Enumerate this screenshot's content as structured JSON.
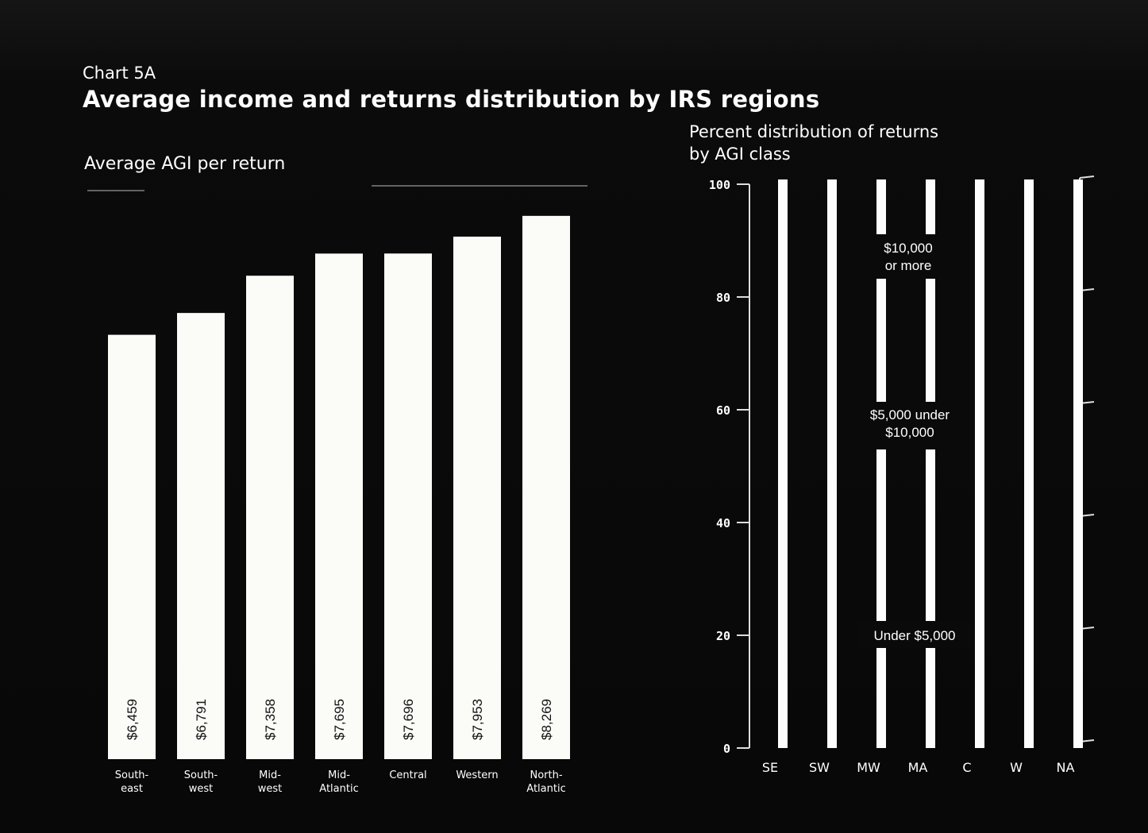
{
  "header": {
    "chart_label": "Chart 5A",
    "title": "Average income and returns distribution by IRS regions"
  },
  "colors": {
    "background": "#0a0a0a",
    "bar": "#ffffff",
    "text": "#ffffff"
  },
  "chart_data": [
    {
      "type": "bar",
      "title": "Average AGI per return",
      "categories": [
        "South-\neast",
        "South-\nwest",
        "Mid-\nwest",
        "Mid-\nAtlantic",
        "Central",
        "Western",
        "North-\nAtlantic"
      ],
      "values": [
        6459,
        6791,
        7358,
        7695,
        7696,
        7953,
        8269
      ],
      "value_labels": [
        "$6,459",
        "$6,791",
        "$7,358",
        "$7,695",
        "$7,696",
        "$7,953",
        "$8,269"
      ],
      "ylim": [
        0,
        9000
      ],
      "grid": false
    },
    {
      "type": "bar",
      "title": "Percent distribution of returns\nby AGI class",
      "categories": [
        "SE",
        "SW",
        "MW",
        "MA",
        "C",
        "W",
        "NA"
      ],
      "yticks": [
        "0",
        "20",
        "40",
        "60",
        "80",
        "100"
      ],
      "ylim": [
        0,
        100
      ],
      "stacked": true,
      "band_labels": [
        "$10,000\nor more",
        "$5,000 under\n$10,000",
        "Under $5,000"
      ],
      "grid": false
    }
  ]
}
